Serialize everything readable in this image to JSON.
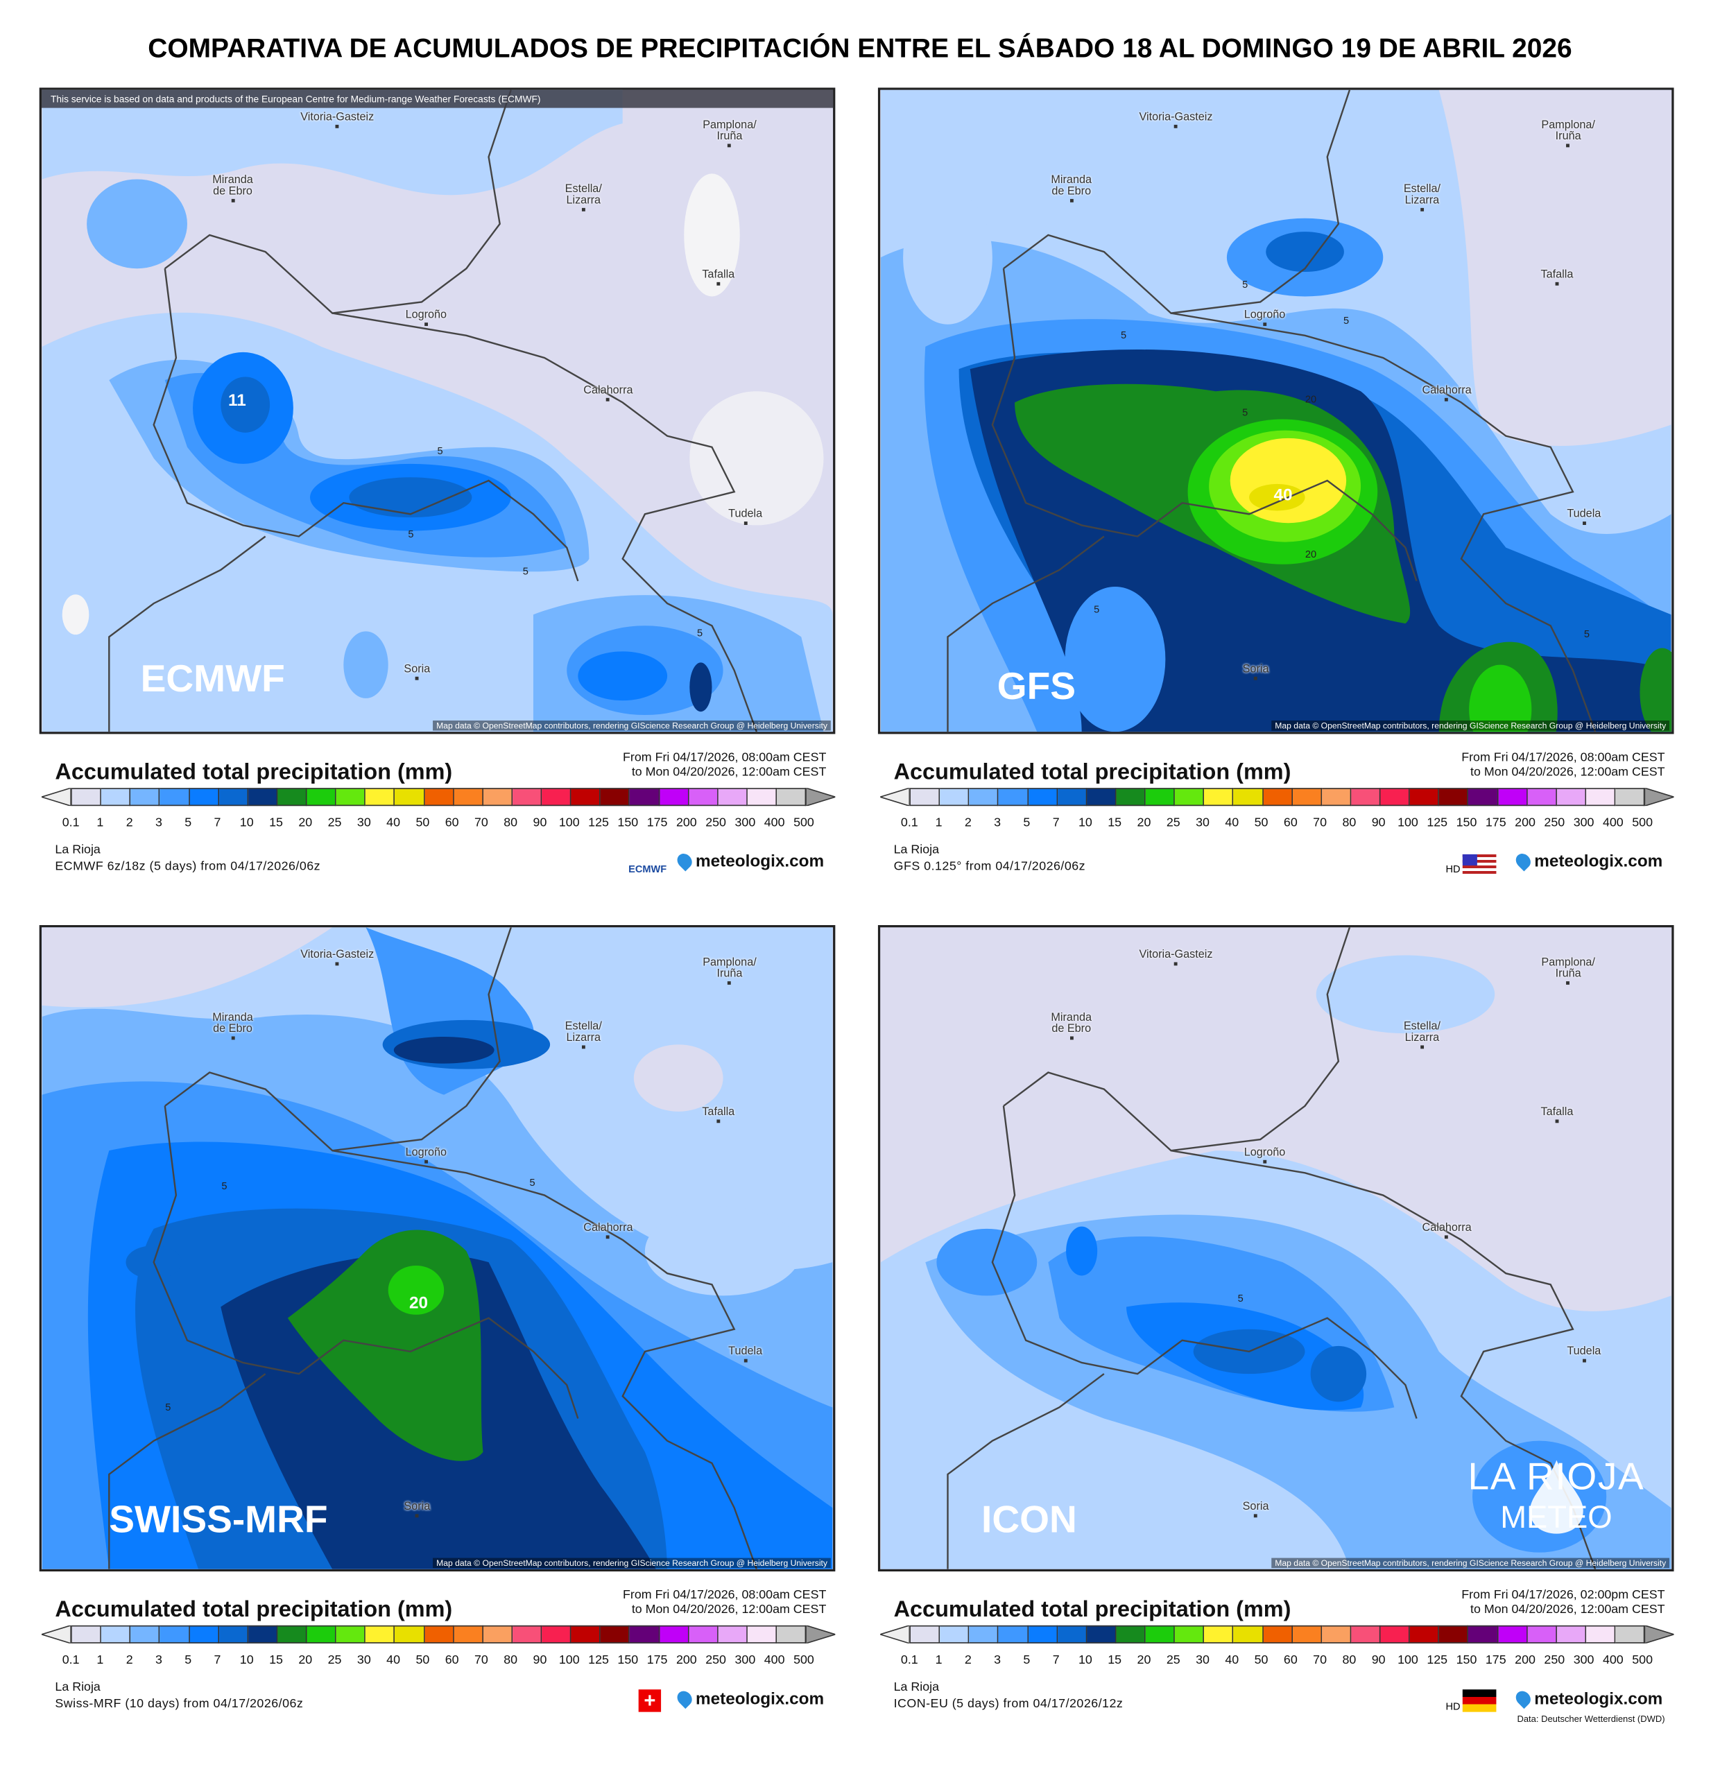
{
  "title": "COMPARATIVA DE ACUMULADOS DE PRECIPITACIÓN ENTRE EL SÁBADO 18 AL DOMINGO 19 DE ABRIL 2026",
  "cities": [
    "Vitoria-Gasteiz",
    "Pamplona/\nIruña",
    "Miranda\nde Ebro",
    "Estella/\nLizarra",
    "Tafalla",
    "Logroño",
    "Calahorra",
    "Tudela",
    "Soria"
  ],
  "attribution": "Map data © OpenStreetMap contributors, rendering GIScience Research Group @ Heidelberg University",
  "ecmwf_note": "This service is based on data and products of the European Centre for Medium-range Weather Forecasts (ECMWF)",
  "legend": {
    "title": "Accumulated total precipitation (mm)",
    "region": "La Rioja",
    "site": "meteologix.com",
    "ticks": [
      "0.1",
      "1",
      "2",
      "3",
      "5",
      "7",
      "10",
      "15",
      "20",
      "25",
      "30",
      "40",
      "50",
      "60",
      "70",
      "80",
      "90",
      "100",
      "125",
      "150",
      "175",
      "200",
      "250",
      "300",
      "400",
      "500"
    ],
    "colors": [
      "#e0e0f0",
      "#b5d5ff",
      "#75b5ff",
      "#3f98ff",
      "#0a7cff",
      "#0a68d0",
      "#063580",
      "#168a1e",
      "#1ccc0c",
      "#64e80e",
      "#fff22e",
      "#e8e000",
      "#f06000",
      "#fa8020",
      "#faa060",
      "#f85078",
      "#f82050",
      "#c00000",
      "#880000",
      "#640078",
      "#c000f8",
      "#d860f8",
      "#e8a8f8",
      "#f8e4f8",
      "#d0d0d0"
    ]
  },
  "chart_data": [
    {
      "type": "heatmap",
      "model": "ECMWF",
      "title": "Accumulated total precipitation (mm)",
      "from": "From Fri 04/17/2026, 08:00am CEST",
      "to": "to Mon 04/20/2026, 12:00am CEST",
      "run": "ECMWF 6z/18z (5 days) from  04/17/2026/06z",
      "contour_labels": [
        "11",
        "5",
        "5",
        "5",
        "5"
      ],
      "max_value_mm": 11,
      "source_badge": "ECMWF"
    },
    {
      "type": "heatmap",
      "model": "GFS",
      "title": "Accumulated total precipitation (mm)",
      "from": "From Fri 04/17/2026, 08:00am CEST",
      "to": "to Mon 04/20/2026, 12:00am CEST",
      "run": "GFS 0.125° from  04/17/2026/06z",
      "contour_labels": [
        "40",
        "20",
        "20",
        "5",
        "5",
        "5",
        "5",
        "5",
        "5"
      ],
      "max_value_mm": 40,
      "source_badge": "HD"
    },
    {
      "type": "heatmap",
      "model": "SWISS-MRF",
      "title": "Accumulated total precipitation (mm)",
      "from": "From Fri 04/17/2026, 08:00am CEST",
      "to": "to Mon 04/20/2026, 12:00am CEST",
      "run": "Swiss-MRF (10 days) from  04/17/2026/06z",
      "contour_labels": [
        "20",
        "5",
        "5",
        "5"
      ],
      "max_value_mm": 20
    },
    {
      "type": "heatmap",
      "model": "ICON",
      "title": "Accumulated total precipitation (mm)",
      "from": "From Fri 04/17/2026, 02:00pm CEST",
      "to": "to Mon 04/20/2026, 12:00am CEST",
      "run": "ICON-EU (5 days) from  04/17/2026/12z",
      "contour_labels": [
        "5"
      ],
      "source_badge": "HD",
      "data_credit": "Data: Deutscher Wetterdienst (DWD)",
      "watermark": "LA RIOJA METEO"
    }
  ]
}
